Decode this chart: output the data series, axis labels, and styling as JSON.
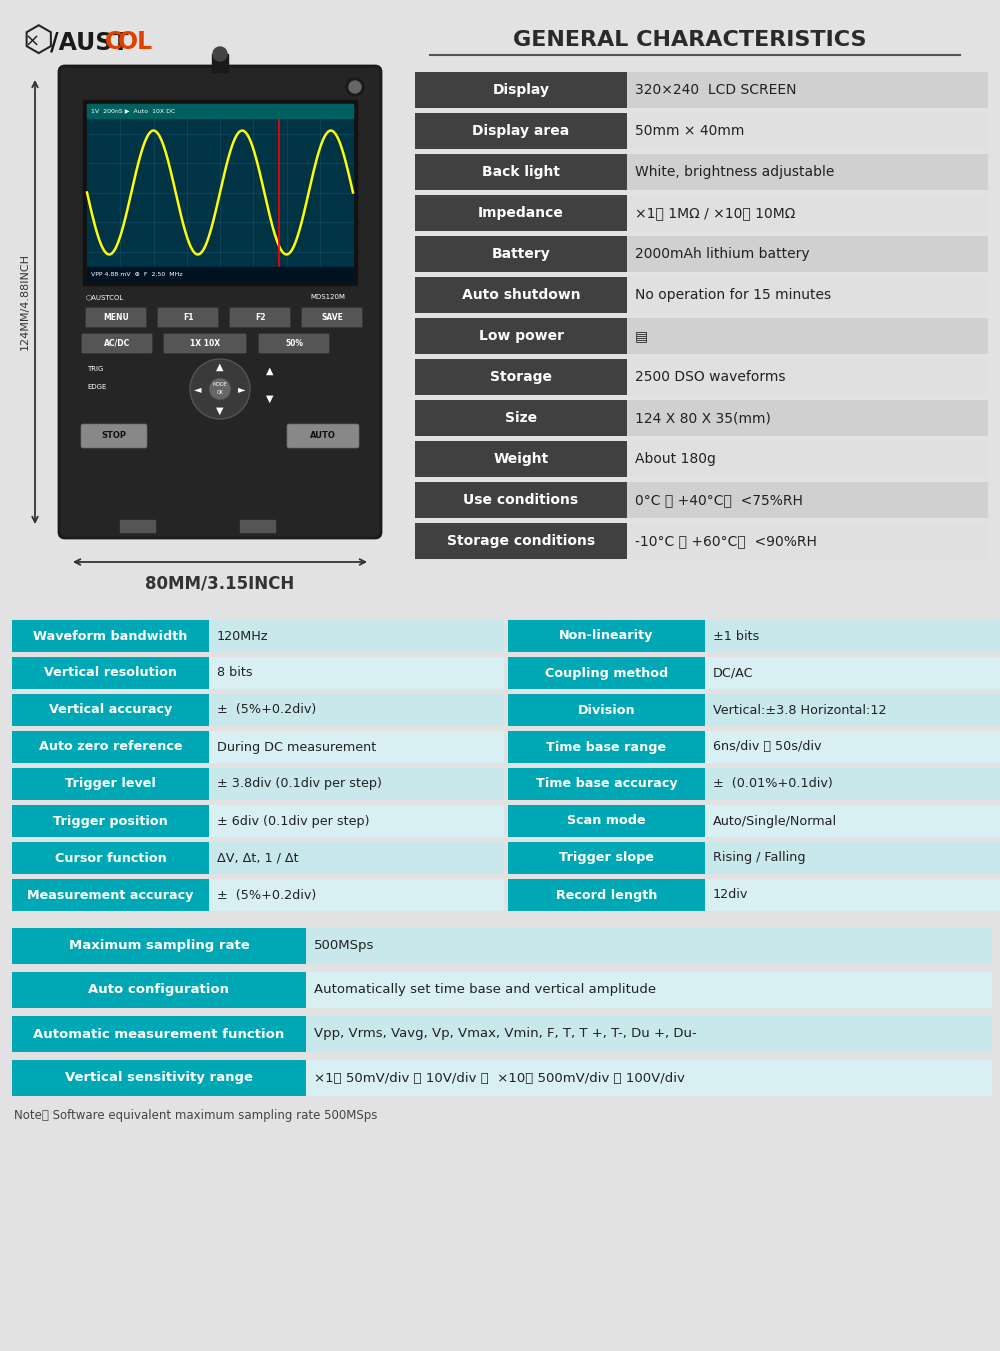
{
  "bg_color": "#e2e2e2",
  "title": "GENERAL CHARACTERISTICS",
  "general_rows": [
    [
      "Display",
      "320×240  LCD SCREEN"
    ],
    [
      "Display area",
      "50mm × 40mm"
    ],
    [
      "Back light",
      "White, brightness adjustable"
    ],
    [
      "Impedance",
      "×1： 1MΩ / ×10： 10MΩ"
    ],
    [
      "Battery",
      "2000mAh lithium battery"
    ],
    [
      "Auto shutdown",
      "No operation for 15 minutes"
    ],
    [
      "Low power",
      "▤"
    ],
    [
      "Storage",
      "2500 DSO waveforms"
    ],
    [
      "Size",
      "124 X 80 X 35(mm)"
    ],
    [
      "Weight",
      "About 180g"
    ],
    [
      "Use conditions",
      "0°C ～ +40°C；  <75%RH"
    ],
    [
      "Storage conditions",
      "-10°C ～ +60°C；  <90%RH"
    ]
  ],
  "left_specs": [
    [
      "Waveform bandwidth",
      "120MHz"
    ],
    [
      "Vertical resolution",
      "8 bits"
    ],
    [
      "Vertical accuracy",
      "±  (5%+0.2div)"
    ],
    [
      "Auto zero reference",
      "During DC measurement"
    ],
    [
      "Trigger level",
      "± 3.8div (0.1div per step)"
    ],
    [
      "Trigger position",
      "± 6div (0.1div per step)"
    ],
    [
      "Cursor function",
      "ΔV, Δt, 1 / Δt"
    ],
    [
      "Measurement accuracy",
      "±  (5%+0.2div)"
    ]
  ],
  "right_specs": [
    [
      "Non-linearity",
      "±1 bits"
    ],
    [
      "Coupling method",
      "DC/AC"
    ],
    [
      "Division",
      "Vertical:±3.8 Horizontal:12"
    ],
    [
      "Time base range",
      "6ns/div ～ 50s/div"
    ],
    [
      "Time base accuracy",
      "±  (0.01%+0.1div)"
    ],
    [
      "Scan mode",
      "Auto/Single/Normal"
    ],
    [
      "Trigger slope",
      "Rising / Falling"
    ],
    [
      "Record length",
      "12div"
    ]
  ],
  "bottom_rows": [
    [
      "Maximum sampling rate",
      "500MSps"
    ],
    [
      "Auto configuration",
      "Automatically set time base and vertical amplitude"
    ],
    [
      "Automatic measurement function",
      "Vpp, Vrms, Vavg, Vp, Vmax, Vmin, F, T, T +, T-, Du +, Du-"
    ],
    [
      "Vertical sensitivity range",
      "×1： 50mV/div ～ 10V/div ；  ×10： 500mV/div ～ 100V/div"
    ]
  ],
  "note": "Note： Software equivalent maximum sampling rate 500MSps",
  "dark_header": "#404040",
  "teal": "#00a8b5",
  "teal_light": "#c8e8ec",
  "teal_lighter": "#d8eff3",
  "val_bg_dark": "#d0d0d0",
  "val_bg_light": "#e0e0e0",
  "dim_label_vertical": "124MM/4.88INCH",
  "dim_label_horizontal": "80MM/3.15INCH"
}
